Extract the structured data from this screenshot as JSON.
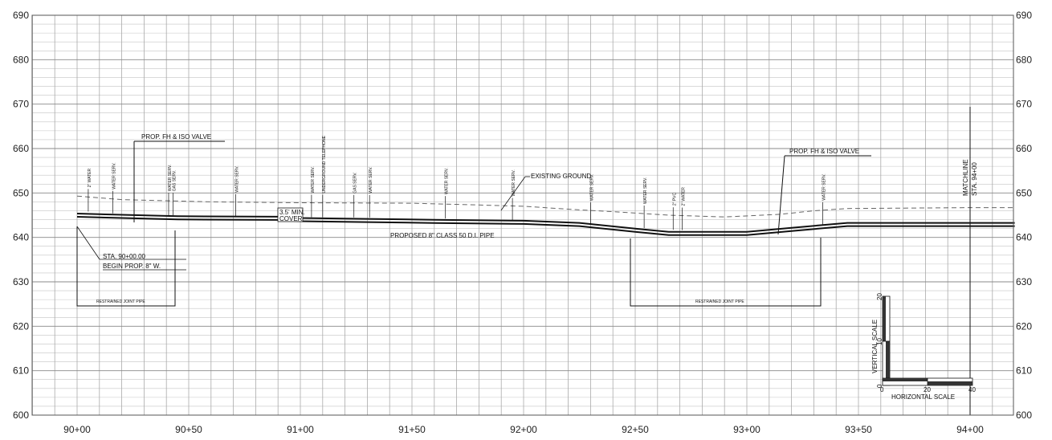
{
  "chart_data": {
    "type": "profile",
    "y_ticks": [
      600,
      610,
      620,
      630,
      640,
      650,
      660,
      670,
      680,
      690
    ],
    "x_ticks": [
      "90+00",
      "90+50",
      "91+00",
      "91+50",
      "92+00",
      "92+50",
      "93+00",
      "93+50",
      "94+00"
    ],
    "x_tick_values": [
      0,
      50,
      100,
      150,
      200,
      250,
      300,
      350,
      400
    ],
    "ylim": [
      600,
      690
    ],
    "xlim": [
      0,
      420
    ],
    "existing_ground": [
      [
        0,
        649.3
      ],
      [
        20,
        648.5
      ],
      [
        60,
        648.0
      ],
      [
        100,
        647.8
      ],
      [
        150,
        647.7
      ],
      [
        180,
        647.3
      ],
      [
        200,
        647.0
      ],
      [
        225,
        646.2
      ],
      [
        240,
        645.8
      ],
      [
        265,
        645.0
      ],
      [
        290,
        644.6
      ],
      [
        315,
        645.2
      ],
      [
        330,
        646.0
      ],
      [
        345,
        646.5
      ],
      [
        400,
        646.7
      ],
      [
        420,
        646.7
      ]
    ],
    "proposed_pipe": [
      [
        0,
        645.0
      ],
      [
        45,
        644.4
      ],
      [
        90,
        644.3
      ],
      [
        100,
        644.0
      ],
      [
        130,
        643.8
      ],
      [
        160,
        643.6
      ],
      [
        200,
        643.4
      ],
      [
        225,
        642.9
      ],
      [
        250,
        641.6
      ],
      [
        265,
        640.9
      ],
      [
        300,
        640.9
      ],
      [
        320,
        641.8
      ],
      [
        345,
        642.9
      ],
      [
        380,
        642.9
      ],
      [
        420,
        642.9
      ]
    ]
  },
  "annotations": {
    "prop_fh_1": "PROP. FH & ISO VALVE",
    "prop_fh_2": "PROP. FH & ISO VALVE",
    "existing_ground": "EXISTING GROUND",
    "cover_line1": "3.5' MIN.",
    "cover_line2": "COVER",
    "pipe_label": "PROPOSED 8\" CLASS 50 D.I. PIPE",
    "sta_line1": "STA. 90+00.00",
    "sta_line2": "BEGIN PROP. 8\" W.",
    "restrained_1": "RESTRAINED JOINT PIPE",
    "restrained_2": "RESTRAINED JOINT PIPE",
    "matchline": "MATCHLINE",
    "matchline_sta": "STA. 94+00"
  },
  "services": [
    {
      "sta": 5,
      "label": "2\" WATER"
    },
    {
      "sta": 16,
      "label": "WATER SERV."
    },
    {
      "sta": 41,
      "label": "WATER SERV."
    },
    {
      "sta": 43,
      "label": "GAS SERV."
    },
    {
      "sta": 71,
      "label": "WATER SERV."
    },
    {
      "sta": 105,
      "label": "WATER SERV."
    },
    {
      "sta": 110,
      "label": "UNDERGROUND TELEPHONE"
    },
    {
      "sta": 124,
      "label": "GAS SERV."
    },
    {
      "sta": 131,
      "label": "WATER SERV."
    },
    {
      "sta": 165,
      "label": "WATER SERV."
    },
    {
      "sta": 195,
      "label": "WATER SERV."
    },
    {
      "sta": 230,
      "label": "WATER SERV."
    },
    {
      "sta": 254,
      "label": "WATER SERV."
    },
    {
      "sta": 267,
      "label": "2\" PVC"
    },
    {
      "sta": 271,
      "label": "2\" WATER"
    },
    {
      "sta": 334,
      "label": "WATER SERV."
    }
  ],
  "scale": {
    "vertical_title": "VERTICAL SCALE",
    "horizontal_title": "HORIZONTAL SCALE",
    "v_labels": [
      "0",
      "10",
      "20"
    ],
    "h_labels": [
      "0",
      "20",
      "40"
    ]
  }
}
